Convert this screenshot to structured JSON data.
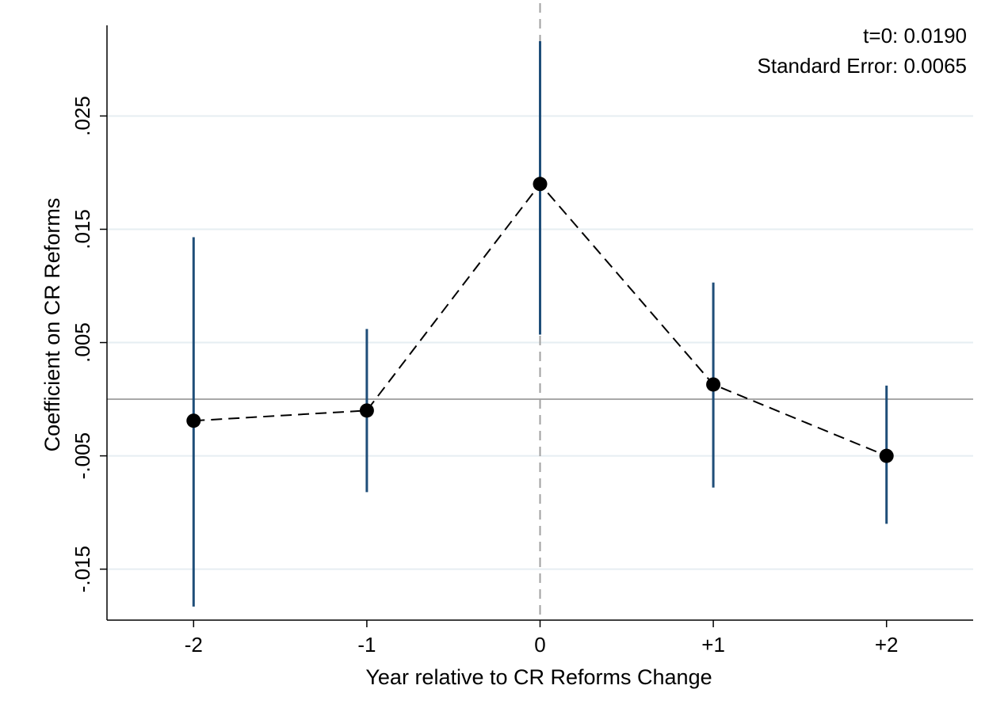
{
  "chart_data": {
    "type": "scatter",
    "title": "",
    "xlabel": "Year relative to CR Reforms Change",
    "ylabel": "Coefficient on CR Reforms",
    "categories": [
      "-2",
      "-1",
      "0",
      "+1",
      "+2"
    ],
    "x_values": [
      -2,
      -1,
      0,
      1,
      2
    ],
    "xlim": [
      -2.5,
      2.5
    ],
    "ylim": [
      -0.0195,
      0.033
    ],
    "y_ticks": [
      0.025,
      0.015,
      0.005,
      -0.005,
      -0.015
    ],
    "y_tick_labels": [
      ".025",
      ".015",
      ".005",
      "-.005",
      "-.015"
    ],
    "series": [
      {
        "values": [
          -0.0019,
          -0.001,
          0.019,
          0.0013,
          -0.005
        ],
        "ci_low": [
          -0.0183,
          -0.0082,
          0.0057,
          -0.0078,
          -0.011
        ],
        "ci_high": [
          0.0143,
          0.0062,
          0.0316,
          0.0103,
          0.0012
        ],
        "line_style": "dashed",
        "marker": "filled-circle"
      }
    ],
    "reference_lines": {
      "horizontal_y": 0,
      "vertical_x": 0
    },
    "annotations": [
      "t=0: 0.0190",
      "Standard Error: 0.0065"
    ],
    "grid": true,
    "legend": "none",
    "colors": {
      "ci": "#1f4e79",
      "point": "#000000",
      "connector": "#000000",
      "grid": "#e6eef2",
      "zero_line": "#8c8c8c",
      "event_line": "#a0a0a0",
      "axis": "#000000"
    }
  }
}
